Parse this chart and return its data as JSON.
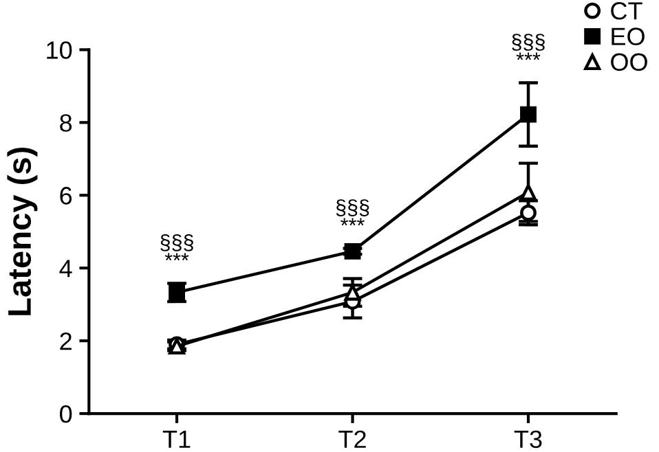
{
  "chart_data": {
    "type": "line",
    "ylabel": "Latency (s)",
    "categories": [
      "T1",
      "T2",
      "T3"
    ],
    "ylim": [
      0,
      10
    ],
    "yticks": [
      0,
      2,
      4,
      6,
      8,
      10
    ],
    "legend": "top right",
    "grid": false,
    "line_style": "solid",
    "series": [
      {
        "name": "CT",
        "color": "#000000",
        "marker": "circle",
        "values": [
          1.9,
          3.08,
          5.52
        ],
        "errors": [
          0.12,
          0.45,
          0.33
        ]
      },
      {
        "name": "EO",
        "color": "#000000",
        "marker": "square",
        "values": [
          3.33,
          4.46,
          8.22
        ],
        "errors": [
          0.25,
          0.08,
          0.87
        ]
      },
      {
        "name": "OO",
        "color": "#000000",
        "marker": "triangle",
        "values": [
          1.85,
          3.33,
          6.08
        ],
        "errors": [
          0.12,
          0.38,
          0.8
        ]
      }
    ],
    "annotations": [
      "§§§\n***",
      "§§§\n***",
      "§§§\n***"
    ]
  }
}
